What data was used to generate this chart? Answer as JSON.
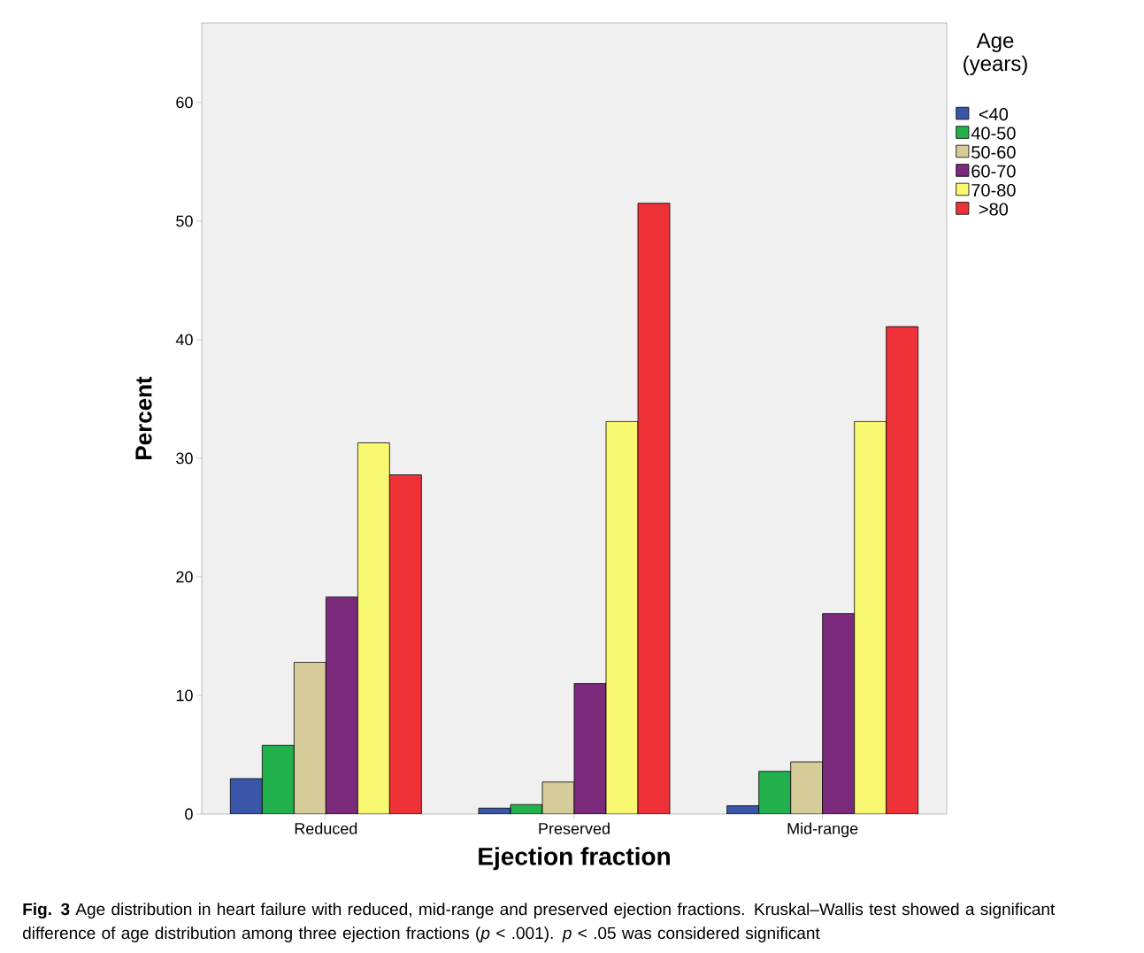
{
  "chart_data": {
    "type": "bar",
    "categories": [
      "Reduced",
      "Preserved",
      "Mid-range"
    ],
    "series": [
      {
        "name": "<40",
        "color": "#3a56a8",
        "values": [
          3.0,
          0.5,
          0.7
        ]
      },
      {
        "name": "40-50",
        "color": "#23b14d",
        "values": [
          5.8,
          0.8,
          3.6
        ]
      },
      {
        "name": "50-60",
        "color": "#d5cc9a",
        "values": [
          12.8,
          2.7,
          4.4
        ]
      },
      {
        "name": "60-70",
        "color": "#7b2a7c",
        "values": [
          18.3,
          11.0,
          16.9
        ]
      },
      {
        "name": "70-80",
        "color": "#f9f871",
        "values": [
          31.3,
          33.1,
          33.1
        ]
      },
      {
        "name": ">80",
        "color": "#ee3237",
        "values": [
          28.6,
          51.5,
          41.1
        ]
      }
    ],
    "xlabel": "Ejection fraction",
    "ylabel": "Percent",
    "legend_title": "Age (years)",
    "legend": "right",
    "ylim": [
      0,
      66.7
    ],
    "yticks": [
      0,
      10,
      20,
      30,
      40,
      50,
      60
    ],
    "annotations": [
      "**Fig. 3** Age distribution in heart failure with reduced, mid-range and preserved ejection fractions. Kruskal–Wallis test showed a significant difference of age distribution among three ejection fractions (*p* < .001). *p* < .05 was considered significant"
    ]
  }
}
